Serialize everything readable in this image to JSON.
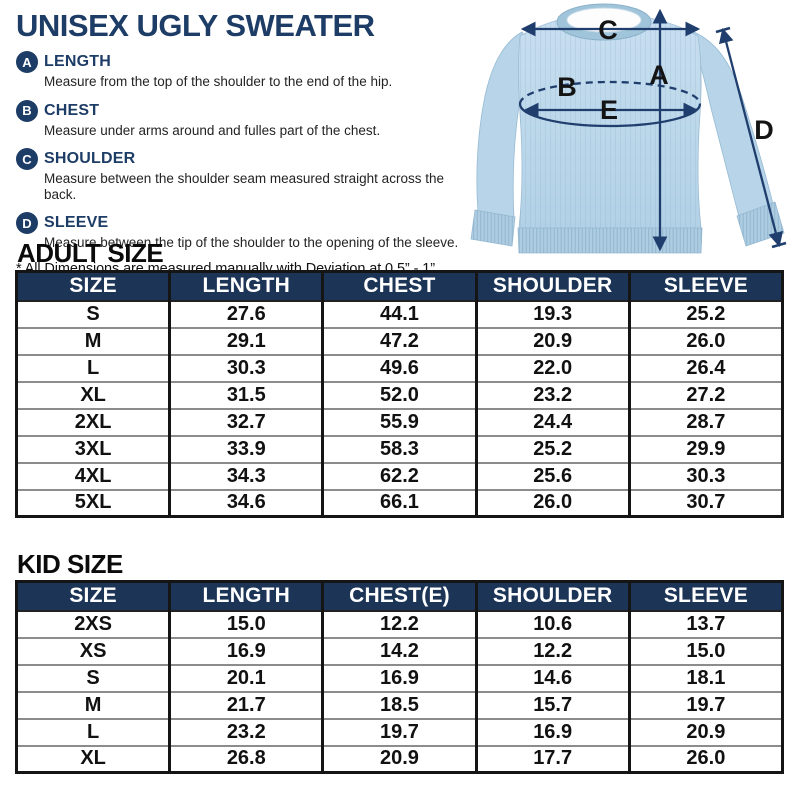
{
  "header": {
    "title": "UNISEX UGLY SWEATER",
    "note": "* All Dimensions are measured manually with Deviation at 0.5” - 1”"
  },
  "measurement_guide": {
    "items": [
      {
        "letter": "A",
        "label": "LENGTH",
        "description": "Measure from the top of the shoulder to the end of the hip."
      },
      {
        "letter": "B",
        "label": "CHEST",
        "description": "Measure under arms around and fulles part of the chest."
      },
      {
        "letter": "C",
        "label": "SHOULDER",
        "description": "Measure between the shoulder seam measured straight across the back."
      },
      {
        "letter": "D",
        "label": "SLEEVE",
        "description": "Measure between the tip of the shoulder to the opening of the sleeve."
      }
    ]
  },
  "diagram": {
    "labels": {
      "length": "A",
      "chest": "B",
      "shoulder": "C",
      "sleeve": "D",
      "chest_width": "E"
    }
  },
  "tables": [
    {
      "heading": "ADULT SIZE",
      "columns": [
        "SIZE",
        "LENGTH",
        "CHEST",
        "SHOULDER",
        "SLEEVE"
      ],
      "rows": [
        [
          "S",
          "27.6",
          "44.1",
          "19.3",
          "25.2"
        ],
        [
          "M",
          "29.1",
          "47.2",
          "20.9",
          "26.0"
        ],
        [
          "L",
          "30.3",
          "49.6",
          "22.0",
          "26.4"
        ],
        [
          "XL",
          "31.5",
          "52.0",
          "23.2",
          "27.2"
        ],
        [
          "2XL",
          "32.7",
          "55.9",
          "24.4",
          "28.7"
        ],
        [
          "3XL",
          "33.9",
          "58.3",
          "25.2",
          "29.9"
        ],
        [
          "4XL",
          "34.3",
          "62.2",
          "25.6",
          "30.3"
        ],
        [
          "5XL",
          "34.6",
          "66.1",
          "26.0",
          "30.7"
        ]
      ]
    },
    {
      "heading": "KID SIZE",
      "columns": [
        "SIZE",
        "LENGTH",
        "CHEST(E)",
        "SHOULDER",
        "SLEEVE"
      ],
      "rows": [
        [
          "2XS",
          "15.0",
          "12.2",
          "10.6",
          "13.7"
        ],
        [
          "XS",
          "16.9",
          "14.2",
          "12.2",
          "15.0"
        ],
        [
          "S",
          "20.1",
          "16.9",
          "14.6",
          "18.1"
        ],
        [
          "M",
          "21.7",
          "18.5",
          "15.7",
          "19.7"
        ],
        [
          "L",
          "23.2",
          "19.7",
          "16.9",
          "20.9"
        ],
        [
          "XL",
          "26.8",
          "20.9",
          "17.7",
          "26.0"
        ]
      ]
    }
  ],
  "colors": {
    "navy": "#1d3c66",
    "header_bg": "#1c3456",
    "arrow": "#1f3e6d",
    "letter": "#141414",
    "sweater_main": "#bdd8ea",
    "sweater_rib": "#aecde2"
  }
}
